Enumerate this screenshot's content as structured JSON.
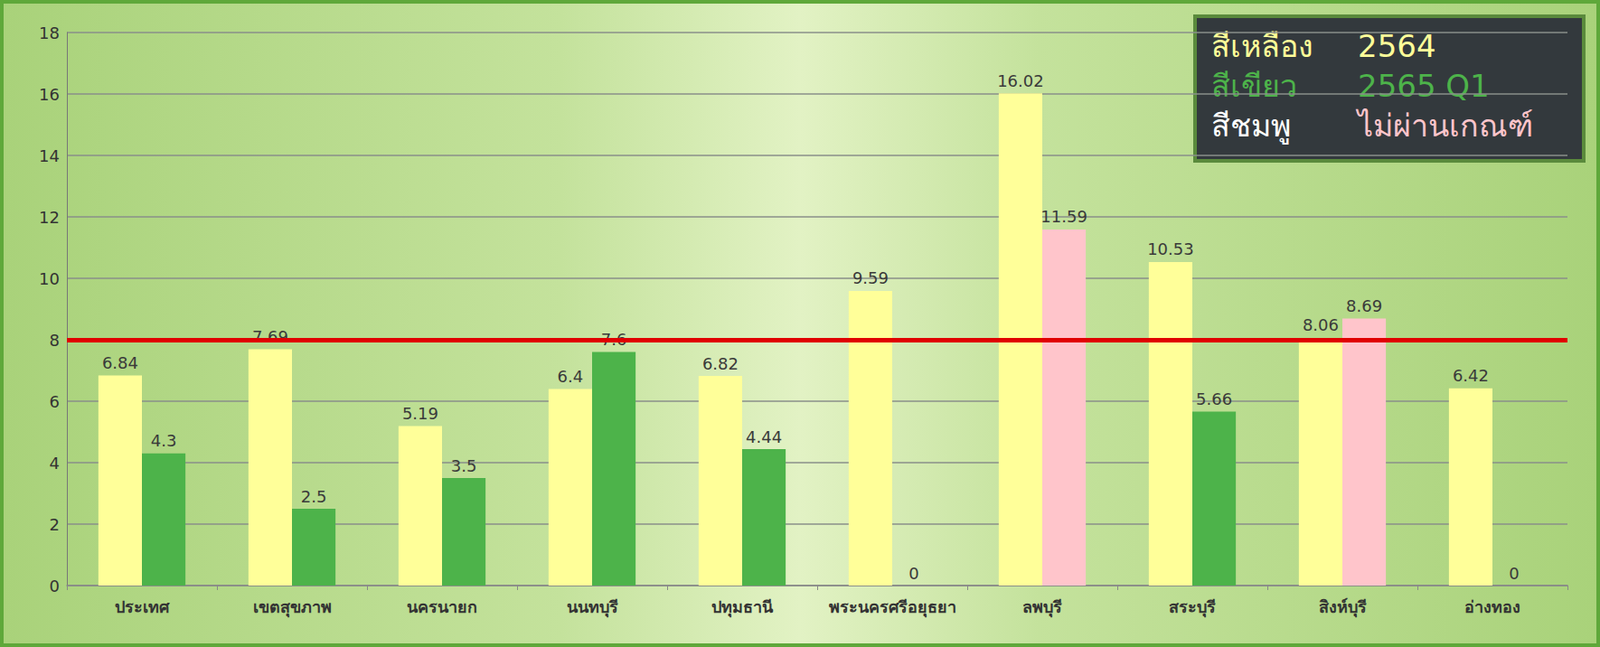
{
  "chart_data": {
    "type": "bar",
    "categories": [
      "ประเทศ",
      "เขตสุขภาพ",
      "นครนายก",
      "นนทบุรี",
      "ปทุมธานี",
      "พระนครศรีอยุธยา",
      "ลพบุรี",
      "สระบุรี",
      "สิงห์บุรี",
      "อ่างทอง"
    ],
    "series": [
      {
        "name": "2564",
        "legend_label": "สีเหลือง",
        "color": "#ffff99",
        "values": [
          6.84,
          7.69,
          5.19,
          6.4,
          6.82,
          9.59,
          16.02,
          10.53,
          8.06,
          6.42
        ]
      },
      {
        "name": "2565 Q1",
        "legend_label": "สีเขียว",
        "color": "#4db34a",
        "colors": [
          "#4db34a",
          "#4db34a",
          "#4db34a",
          "#4db34a",
          "#4db34a",
          "#4db34a",
          "#ffc5cb",
          "#4db34a",
          "#ffc5cb",
          "#4db34a"
        ],
        "values": [
          4.3,
          2.5,
          3.5,
          7.6,
          4.44,
          0,
          11.59,
          5.66,
          8.69,
          0
        ]
      }
    ],
    "legend_note": {
      "label": "สีชมพู",
      "text": "ไม่ผ่านเกณฑ์",
      "color": "#ffc5cb"
    },
    "reference_line": {
      "value": 8,
      "color": "#e00000"
    },
    "ylim": [
      0,
      18
    ],
    "yticks": [
      0,
      2,
      4,
      6,
      8,
      10,
      12,
      14,
      16,
      18
    ],
    "grid": true,
    "data_labels": true,
    "legend": "top-right"
  }
}
